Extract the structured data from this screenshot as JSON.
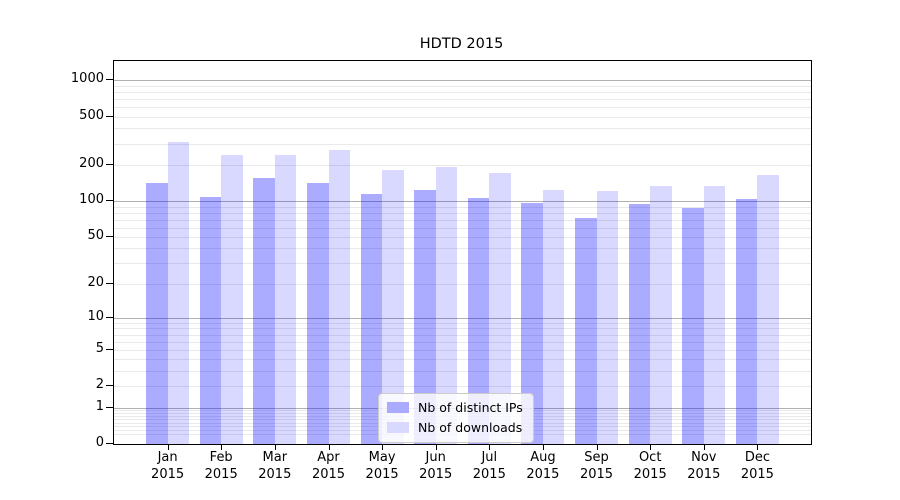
{
  "title": "HDTD 2015",
  "chart_data": {
    "type": "bar",
    "title": "HDTD 2015",
    "categories": [
      "Jan 2015",
      "Feb 2015",
      "Mar 2015",
      "Apr 2015",
      "May 2015",
      "Jun 2015",
      "Jul 2015",
      "Aug 2015",
      "Sep 2015",
      "Oct 2015",
      "Nov 2015",
      "Dec 2015"
    ],
    "series": [
      {
        "name": "Nb of distinct IPs",
        "fill": "rgba(0,0,255,0.33)",
        "legend_color": "#aaaaff",
        "values": [
          142,
          108,
          156,
          142,
          115,
          123,
          106,
          97,
          72,
          94,
          87,
          103
        ]
      },
      {
        "name": "Nb of downloads",
        "fill": "rgba(0,0,255,0.15)",
        "legend_color": "#d9d9ff",
        "values": [
          310,
          240,
          240,
          265,
          181,
          193,
          171,
          123,
          121,
          134,
          134,
          164
        ]
      }
    ],
    "xlabel": "",
    "ylabel": "",
    "yscale": "log1p",
    "ylim": [
      0,
      1440
    ],
    "yticks": [
      0,
      1,
      2,
      5,
      10,
      20,
      50,
      100,
      200,
      500,
      1000
    ],
    "grid": true,
    "legend_position": "lower center",
    "colors": {
      "major_grid": "#b0b0b0",
      "minor_grid": "#e9e9e9",
      "axis": "#000000"
    }
  }
}
